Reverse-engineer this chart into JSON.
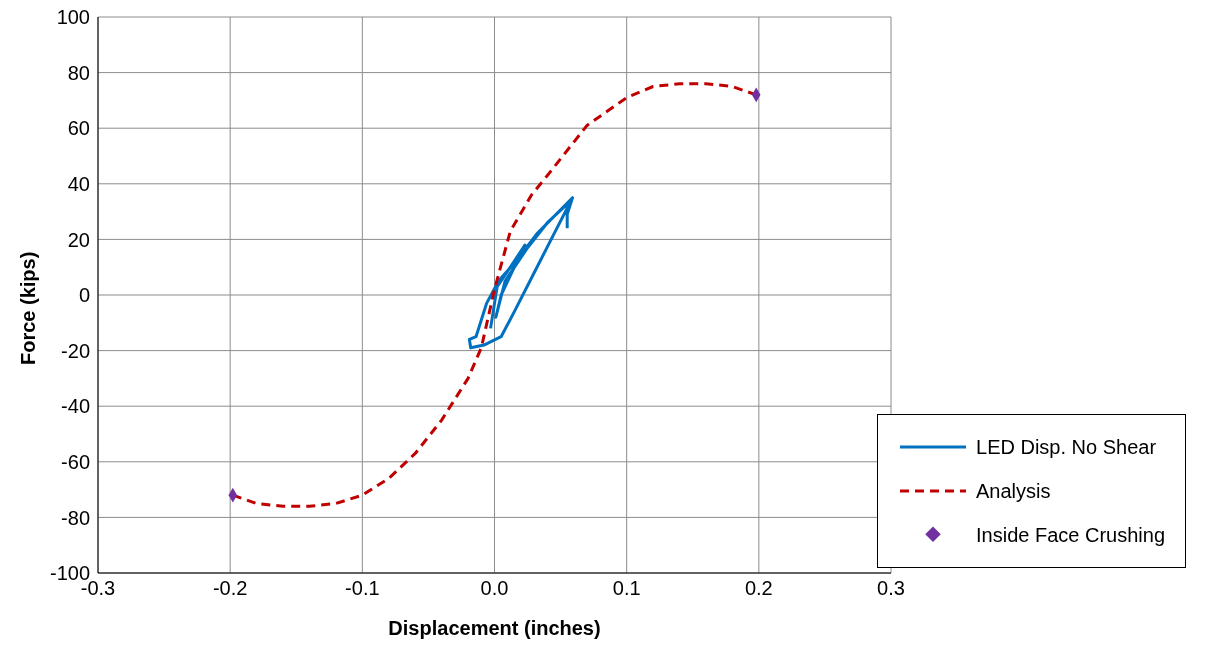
{
  "chart_data": {
    "type": "line",
    "xlabel": "Displacement (inches)",
    "ylabel": "Force (kips)",
    "xlim": [
      -0.3,
      0.3
    ],
    "xticks": [
      -0.3,
      -0.2,
      -0.1,
      {
        "value": 0,
        "label": "0.0"
      },
      0.1,
      0.2,
      0.3
    ],
    "ylim": [
      -100,
      100
    ],
    "yticks": [
      -100,
      -80,
      -60,
      -40,
      -20,
      0,
      20,
      40,
      60,
      80,
      100
    ],
    "grid": true,
    "legend": "bottom right",
    "series": [
      {
        "name": "LED Disp. No Shear",
        "color": "#0070c0",
        "line_style": "solid",
        "marker": "none",
        "x": [
          -0.003,
          0.002,
          0.012,
          0.023,
          0.015,
          0.005,
          0.001,
          0.008,
          0.025,
          0.04,
          0.058,
          0.045,
          0.03,
          0.015,
          0.005,
          -0.008,
          -0.018,
          -0.019,
          -0.014,
          -0.006,
          0.003,
          0.016,
          0.032,
          0.059,
          0.055,
          0.055
        ],
        "values": [
          -12,
          3,
          10,
          18,
          10,
          0,
          -8,
          5,
          17,
          26,
          34,
          22,
          8,
          -6,
          -15,
          -18,
          -19,
          -16,
          -15,
          -3,
          5,
          12,
          22,
          35,
          29,
          24
        ]
      },
      {
        "name": "Analysis",
        "color": "#c00000",
        "line_style": "dashed",
        "marker": "none",
        "x": [
          -0.198,
          -0.18,
          -0.16,
          -0.14,
          -0.12,
          -0.1,
          -0.08,
          -0.06,
          -0.04,
          -0.02,
          -0.01,
          0,
          0.012,
          0.028,
          0.04,
          0.06,
          0.07,
          0.1,
          0.12,
          0.14,
          0.16,
          0.18,
          0.198
        ],
        "values": [
          -72,
          -75,
          -76,
          -76,
          -75,
          -72,
          -66,
          -57,
          -45,
          -30,
          -19,
          2,
          23,
          36,
          43,
          55,
          61,
          71,
          75,
          76,
          76,
          75,
          72
        ]
      },
      {
        "name": "Inside Face Crushing",
        "type": "scatter",
        "color": "#7030a0",
        "marker": "diamond",
        "x": [
          -0.198,
          0.198
        ],
        "values": [
          -72,
          72
        ]
      }
    ]
  }
}
